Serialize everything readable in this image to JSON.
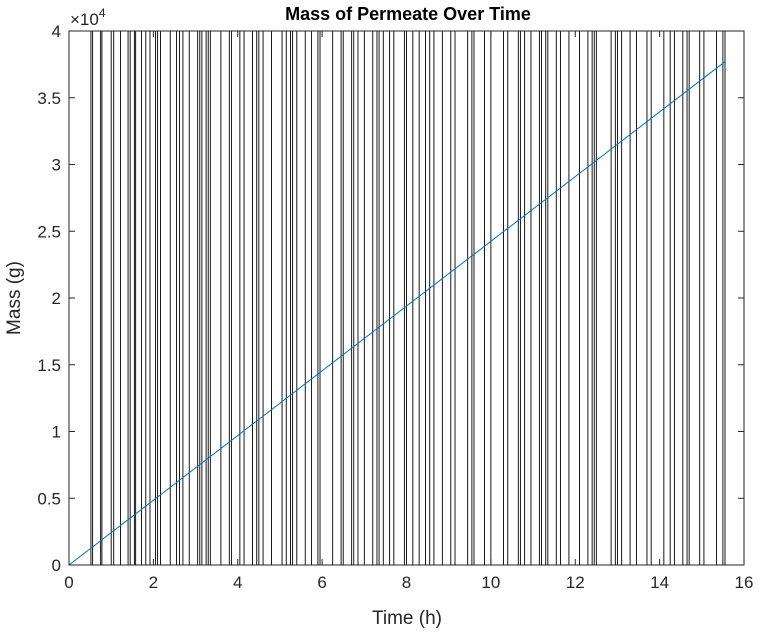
{
  "chart_data": {
    "type": "line",
    "title": "Mass of Permeate Over Time",
    "xlabel": "Time (h)",
    "ylabel": "Mass (g)",
    "xlim": [
      0,
      16
    ],
    "ylim": [
      0,
      40000
    ],
    "x_ticks": [
      0,
      2,
      4,
      6,
      8,
      10,
      12,
      14,
      16
    ],
    "x_tick_labels": [
      "0",
      "2",
      "4",
      "6",
      "8",
      "10",
      "12",
      "14",
      "16"
    ],
    "y_ticks": [
      0,
      5000,
      10000,
      15000,
      20000,
      25000,
      30000,
      35000,
      40000
    ],
    "y_tick_labels": [
      "0",
      "0.5",
      "1",
      "1.5",
      "2",
      "2.5",
      "3",
      "3.5",
      "4"
    ],
    "y_exponent_base": "×10",
    "y_exponent": "4",
    "grid": false,
    "series": [
      {
        "color": "#0072BD",
        "x": [
          0,
          15.55
        ],
        "y": [
          0,
          37700
        ]
      }
    ],
    "vertical_lines": {
      "color": "#000000",
      "x": [
        0.52,
        0.56,
        0.75,
        0.78,
        1.0,
        1.06,
        1.22,
        1.4,
        1.45,
        1.55,
        1.58,
        1.72,
        1.82,
        1.92,
        2.05,
        2.1,
        2.17,
        2.4,
        2.55,
        2.62,
        2.7,
        2.85,
        3.05,
        3.1,
        3.15,
        3.25,
        3.3,
        3.35,
        3.6,
        3.8,
        3.85,
        4.05,
        4.15,
        4.35,
        4.45,
        4.5,
        4.6,
        4.8,
        5.05,
        5.15,
        5.25,
        5.3,
        5.4,
        5.6,
        5.75,
        5.9,
        5.95,
        6.25,
        6.45,
        6.5,
        6.7,
        6.75,
        6.85,
        7.0,
        7.2,
        7.3,
        7.35,
        7.45,
        7.6,
        7.7,
        7.95,
        8.0,
        8.15,
        8.3,
        8.45,
        8.55,
        8.65,
        8.85,
        9.05,
        9.15,
        9.45,
        9.55,
        9.6,
        9.85,
        10.0,
        10.3,
        10.4,
        10.65,
        10.7,
        10.8,
        10.95,
        11.15,
        11.2,
        11.3,
        11.35,
        11.55,
        11.65,
        11.85,
        12.1,
        12.3,
        12.4,
        12.45,
        12.5,
        12.85,
        12.95,
        13.0,
        13.1,
        13.3,
        13.45,
        13.7,
        13.8,
        14.1,
        14.25,
        14.35,
        14.55,
        14.65,
        14.7,
        14.95,
        15.05,
        15.35,
        15.5,
        15.55
      ]
    }
  }
}
